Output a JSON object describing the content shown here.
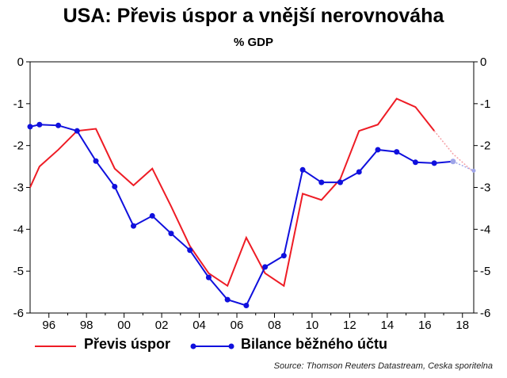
{
  "title": "USA: Převis úspor a vnější nerovnováha",
  "subtitle": "% GDP",
  "source": "Source: Thomson Reuters Datastream, Ceska sporitelna",
  "colors": {
    "saving": "#ee1c25",
    "balance": "#1010dd",
    "saving_fade": "#f5a0a6",
    "balance_fade": "#9ea4e8"
  },
  "chart_data": {
    "type": "line",
    "title": "USA: Převis úspor a vnější nerovnováha",
    "ylabel": "% GDP",
    "xlim": [
      1995,
      2018.6
    ],
    "ylim": [
      -6,
      0
    ],
    "y_ticks": [
      "0",
      "-1",
      "-2",
      "-3",
      "-4",
      "-5",
      "-6"
    ],
    "x_ticks": [
      "96",
      "98",
      "00",
      "02",
      "04",
      "06",
      "08",
      "10",
      "12",
      "14",
      "16",
      "18"
    ],
    "x_tick_years": [
      1996,
      1998,
      2000,
      2002,
      2004,
      2006,
      2008,
      2010,
      2012,
      2014,
      2016,
      2018
    ],
    "grid": false,
    "legend_position": "bottom",
    "series": [
      {
        "name": "Převis úspor",
        "x": [
          1995.0,
          1995.5,
          1996.5,
          1997.5,
          1998.5,
          1999.5,
          2000.5,
          2001.5,
          2002.5,
          2003.5,
          2004.5,
          2005.5,
          2006.5,
          2007.5,
          2008.5,
          2009.5,
          2010.5,
          2011.5,
          2012.5,
          2013.5,
          2014.5,
          2015.5,
          2016.5
        ],
        "values": [
          -3.0,
          -2.5,
          -2.1,
          -1.65,
          -1.6,
          -2.55,
          -2.95,
          -2.55,
          -3.45,
          -4.4,
          -5.05,
          -5.35,
          -4.2,
          -5.05,
          -5.35,
          -3.15,
          -3.3,
          -2.8,
          -1.65,
          -1.5,
          -0.88,
          -1.08,
          -1.65
        ],
        "forecast_x": [
          2016.5,
          2017.5,
          2018.5
        ],
        "forecast_values": [
          -1.65,
          -2.2,
          -2.6
        ]
      },
      {
        "name": "Bilance běžného účtu",
        "x": [
          1995.0,
          1995.5,
          1996.5,
          1997.5,
          1998.5,
          1999.5,
          2000.5,
          2001.5,
          2002.5,
          2003.5,
          2004.5,
          2005.5,
          2006.5,
          2007.5,
          2008.5,
          2009.5,
          2010.5,
          2011.5,
          2012.5,
          2013.5,
          2014.5,
          2015.5,
          2016.5,
          2017.5
        ],
        "values": [
          -1.55,
          -1.5,
          -1.52,
          -1.65,
          -2.37,
          -2.98,
          -3.92,
          -3.68,
          -4.1,
          -4.5,
          -5.15,
          -5.68,
          -5.82,
          -4.9,
          -4.63,
          -2.58,
          -2.88,
          -2.88,
          -2.63,
          -2.1,
          -2.15,
          -2.4,
          -2.42,
          -2.38
        ],
        "forecast_x": [
          2017.5,
          2018.6
        ],
        "forecast_values": [
          -2.38,
          -2.6
        ]
      }
    ]
  }
}
